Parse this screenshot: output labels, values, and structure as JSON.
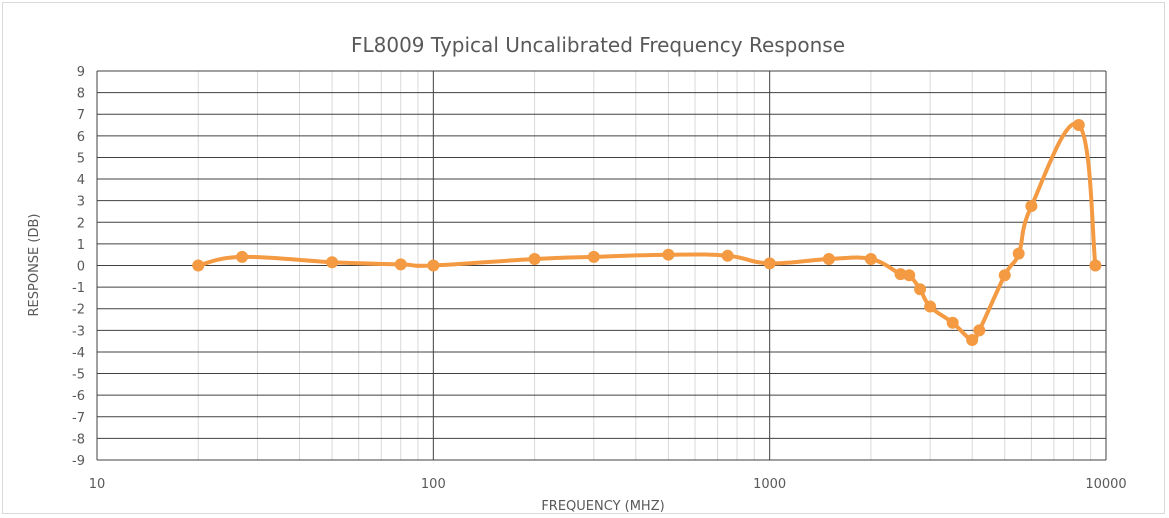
{
  "chart_data": {
    "type": "line",
    "title": "FL8009 Typical Uncalibrated Frequency Response",
    "xlabel": "FREQUENCY (MHZ)",
    "ylabel": "RESPONSE (DB)",
    "x_scale": "log",
    "xlim": [
      10,
      10000
    ],
    "ylim": [
      -9,
      9
    ],
    "x_ticks": [
      "10",
      "100",
      "1000",
      "10000"
    ],
    "y_ticks": [
      "9",
      "8",
      "7",
      "6",
      "5",
      "4",
      "3",
      "2",
      "1",
      "0",
      "-1",
      "-2",
      "-3",
      "-4",
      "-5",
      "-6",
      "-7",
      "-8",
      "-9"
    ],
    "grid": true,
    "legend": "none",
    "series": [
      {
        "color": "#f39a42",
        "smooth": true,
        "markers": true,
        "points": [
          {
            "x": 20,
            "y": 0.0
          },
          {
            "x": 27,
            "y": 0.4
          },
          {
            "x": 50,
            "y": 0.15
          },
          {
            "x": 80,
            "y": 0.05
          },
          {
            "x": 100,
            "y": 0.0
          },
          {
            "x": 200,
            "y": 0.3
          },
          {
            "x": 300,
            "y": 0.4
          },
          {
            "x": 500,
            "y": 0.5
          },
          {
            "x": 750,
            "y": 0.45
          },
          {
            "x": 1000,
            "y": 0.1
          },
          {
            "x": 1500,
            "y": 0.3
          },
          {
            "x": 2000,
            "y": 0.3
          },
          {
            "x": 2450,
            "y": -0.4
          },
          {
            "x": 2600,
            "y": -0.45
          },
          {
            "x": 2800,
            "y": -1.1
          },
          {
            "x": 3000,
            "y": -1.9
          },
          {
            "x": 3500,
            "y": -2.65
          },
          {
            "x": 4000,
            "y": -3.45
          },
          {
            "x": 4200,
            "y": -3.0
          },
          {
            "x": 5000,
            "y": -0.45
          },
          {
            "x": 5500,
            "y": 0.55
          },
          {
            "x": 6000,
            "y": 2.75
          },
          {
            "x": 8300,
            "y": 6.5
          },
          {
            "x": 9300,
            "y": 0.0
          }
        ]
      }
    ]
  }
}
